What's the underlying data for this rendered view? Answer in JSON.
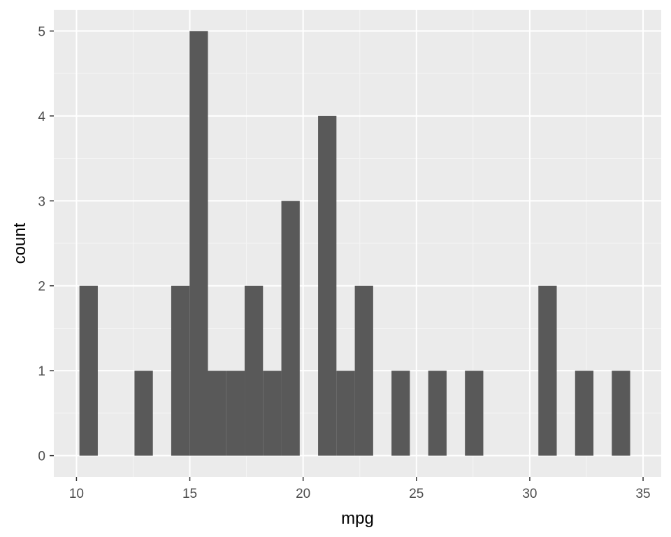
{
  "chart_data": {
    "type": "bar",
    "subtype": "histogram",
    "title": "",
    "xlabel": "mpg",
    "ylabel": "count",
    "xlim": [
      9.0,
      35.8
    ],
    "ylim": [
      -0.25,
      5.25
    ],
    "x_ticks": [
      10,
      15,
      20,
      25,
      30,
      35
    ],
    "y_ticks": [
      0,
      1,
      2,
      3,
      4,
      5
    ],
    "grid": true,
    "legend": "none",
    "bin_width": 0.81,
    "bins": [
      {
        "x0": 10.13,
        "x1": 10.94,
        "count": 2
      },
      {
        "x0": 10.94,
        "x1": 11.75,
        "count": 0
      },
      {
        "x0": 11.75,
        "x1": 12.56,
        "count": 0
      },
      {
        "x0": 12.56,
        "x1": 13.37,
        "count": 1
      },
      {
        "x0": 13.37,
        "x1": 14.18,
        "count": 0
      },
      {
        "x0": 14.18,
        "x1": 14.99,
        "count": 2
      },
      {
        "x0": 14.99,
        "x1": 15.8,
        "count": 5
      },
      {
        "x0": 15.8,
        "x1": 16.61,
        "count": 1
      },
      {
        "x0": 16.61,
        "x1": 17.42,
        "count": 1
      },
      {
        "x0": 17.42,
        "x1": 18.23,
        "count": 2
      },
      {
        "x0": 18.23,
        "x1": 19.04,
        "count": 1
      },
      {
        "x0": 19.04,
        "x1": 19.85,
        "count": 3
      },
      {
        "x0": 19.85,
        "x1": 20.66,
        "count": 0
      },
      {
        "x0": 20.66,
        "x1": 21.47,
        "count": 4
      },
      {
        "x0": 21.47,
        "x1": 22.28,
        "count": 1
      },
      {
        "x0": 22.28,
        "x1": 23.09,
        "count": 2
      },
      {
        "x0": 23.09,
        "x1": 23.9,
        "count": 0
      },
      {
        "x0": 23.9,
        "x1": 24.71,
        "count": 1
      },
      {
        "x0": 24.71,
        "x1": 25.52,
        "count": 0
      },
      {
        "x0": 25.52,
        "x1": 26.33,
        "count": 1
      },
      {
        "x0": 26.33,
        "x1": 27.14,
        "count": 0
      },
      {
        "x0": 27.14,
        "x1": 27.95,
        "count": 1
      },
      {
        "x0": 27.95,
        "x1": 28.76,
        "count": 0
      },
      {
        "x0": 28.76,
        "x1": 29.57,
        "count": 0
      },
      {
        "x0": 29.57,
        "x1": 30.38,
        "count": 0
      },
      {
        "x0": 30.38,
        "x1": 31.19,
        "count": 2
      },
      {
        "x0": 31.19,
        "x1": 32.0,
        "count": 0
      },
      {
        "x0": 32.0,
        "x1": 32.81,
        "count": 1
      },
      {
        "x0": 32.81,
        "x1": 33.62,
        "count": 0
      },
      {
        "x0": 33.62,
        "x1": 34.43,
        "count": 1
      }
    ],
    "colors": {
      "bar": "#595959",
      "panel": "#ebebeb",
      "grid_major": "#ffffff",
      "grid_minor": "#f5f5f5",
      "tick": "#333333"
    }
  }
}
